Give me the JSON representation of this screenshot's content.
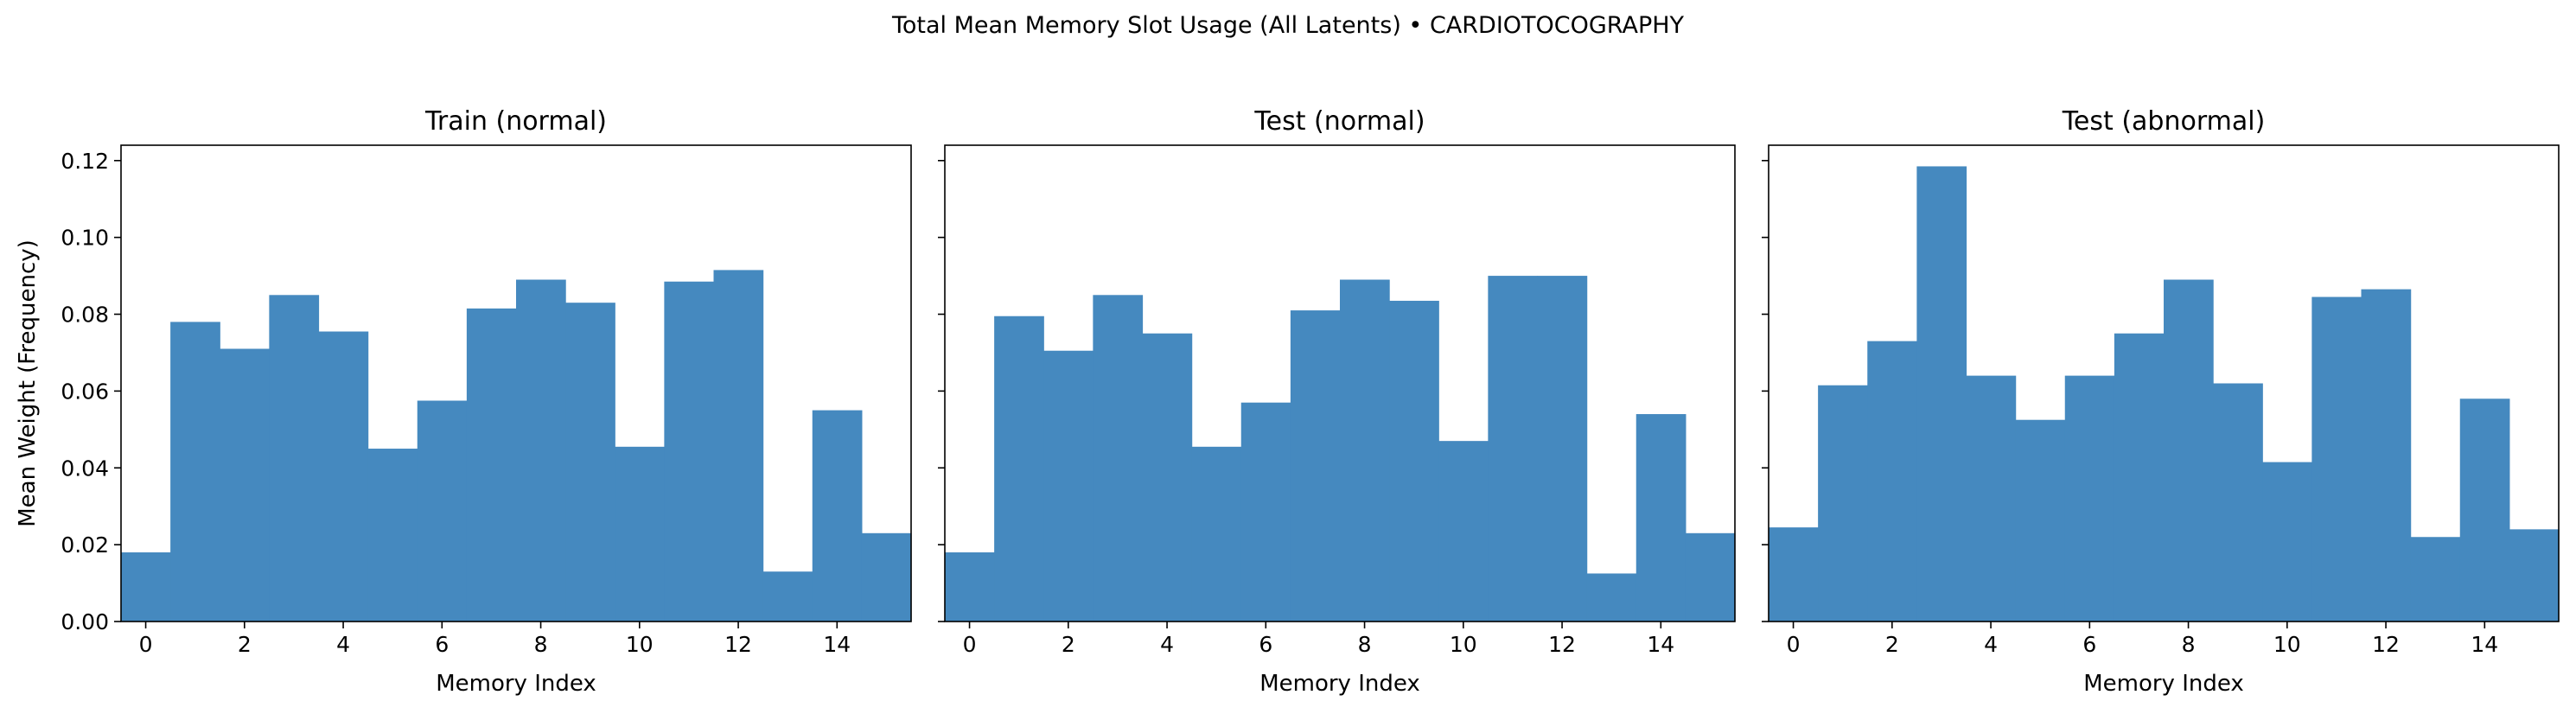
{
  "suptitle": "Total Mean Memory Slot Usage (All Latents) • CARDIOTOCOGRAPHY",
  "colors": {
    "bar": "#4589bf",
    "axis": "#000000"
  },
  "chart_data": [
    {
      "type": "bar",
      "title": "Train (normal)",
      "xlabel": "Memory Index",
      "ylabel": "Mean Weight (Frequency)",
      "categories": [
        0,
        1,
        2,
        3,
        4,
        5,
        6,
        7,
        8,
        9,
        10,
        11,
        12,
        13,
        14,
        15
      ],
      "values": [
        0.018,
        0.078,
        0.071,
        0.085,
        0.0755,
        0.045,
        0.0575,
        0.0815,
        0.089,
        0.083,
        0.0455,
        0.0885,
        0.0915,
        0.013,
        0.055,
        0.023
      ],
      "xlim": [
        -0.5,
        15.5
      ],
      "ylim": [
        0,
        0.124
      ],
      "xticks": [
        "0",
        "2",
        "4",
        "6",
        "8",
        "10",
        "12",
        "14"
      ],
      "yticks": [
        "0.00",
        "0.02",
        "0.04",
        "0.06",
        "0.08",
        "0.10",
        "0.12"
      ],
      "grid": false
    },
    {
      "type": "bar",
      "title": "Test (normal)",
      "xlabel": "Memory Index",
      "ylabel": "",
      "categories": [
        0,
        1,
        2,
        3,
        4,
        5,
        6,
        7,
        8,
        9,
        10,
        11,
        12,
        13,
        14,
        15
      ],
      "values": [
        0.018,
        0.0795,
        0.0705,
        0.085,
        0.075,
        0.0455,
        0.057,
        0.081,
        0.089,
        0.0835,
        0.047,
        0.09,
        0.09,
        0.0125,
        0.054,
        0.023
      ],
      "xlim": [
        -0.5,
        15.5
      ],
      "ylim": [
        0,
        0.124
      ],
      "xticks": [
        "0",
        "2",
        "4",
        "6",
        "8",
        "10",
        "12",
        "14"
      ],
      "yticks": [
        "0.00",
        "0.02",
        "0.04",
        "0.06",
        "0.08",
        "0.10",
        "0.12"
      ],
      "grid": false
    },
    {
      "type": "bar",
      "title": "Test (abnormal)",
      "xlabel": "Memory Index",
      "ylabel": "",
      "categories": [
        0,
        1,
        2,
        3,
        4,
        5,
        6,
        7,
        8,
        9,
        10,
        11,
        12,
        13,
        14,
        15
      ],
      "values": [
        0.0245,
        0.0615,
        0.073,
        0.1185,
        0.064,
        0.0525,
        0.064,
        0.075,
        0.089,
        0.062,
        0.0415,
        0.0845,
        0.0865,
        0.022,
        0.058,
        0.024
      ],
      "xlim": [
        -0.5,
        15.5
      ],
      "ylim": [
        0,
        0.124
      ],
      "xticks": [
        "0",
        "2",
        "4",
        "6",
        "8",
        "10",
        "12",
        "14"
      ],
      "yticks": [
        "0.00",
        "0.02",
        "0.04",
        "0.06",
        "0.08",
        "0.10",
        "0.12"
      ],
      "grid": false
    }
  ]
}
